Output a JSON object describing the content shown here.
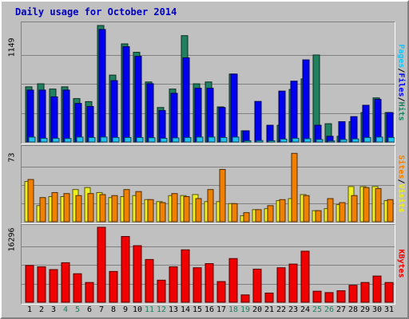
{
  "title": "Daily usage for October 2014",
  "colors": {
    "hits": "#20805f",
    "files": "#0000f0",
    "pages": "#20c0f0",
    "visits": "#f0f020",
    "sites": "#f08000",
    "kbytes": "#f00000",
    "weekday_label": "#000000",
    "weekend_label": "#208060"
  },
  "chart_data": {
    "type": "bar",
    "categories": [
      "1",
      "2",
      "3",
      "4",
      "5",
      "6",
      "7",
      "8",
      "9",
      "10",
      "11",
      "12",
      "13",
      "14",
      "15",
      "16",
      "17",
      "18",
      "19",
      "20",
      "21",
      "22",
      "23",
      "24",
      "25",
      "26",
      "27",
      "28",
      "29",
      "30",
      "31"
    ],
    "weekend_days": [
      "4",
      "5",
      "11",
      "12",
      "18",
      "19",
      "25",
      "26"
    ],
    "panels": [
      {
        "id": "usage",
        "max_label": "1149",
        "ylim": [
          0,
          1149
        ],
        "legend": [
          {
            "text": "Pages",
            "color": "#20c0f0"
          },
          {
            "text": "/",
            "color": "#000000"
          },
          {
            "text": "Files",
            "color": "#0000f0"
          },
          {
            "text": "/",
            "color": "#000000"
          },
          {
            "text": "Hits",
            "color": "#20805f"
          }
        ],
        "series": [
          {
            "name": "Hits",
            "values": [
              544,
              574,
              522,
              544,
              428,
              398,
              1149,
              660,
              968,
              885,
              592,
              340,
              522,
              1049,
              574,
              592,
              346,
              670,
              110,
              0,
              0,
              165,
              518,
              622,
              858,
              180,
              56,
              200,
              290,
              435,
              290
            ]
          },
          {
            "name": "Files",
            "values": [
              512,
              512,
              445,
              512,
              380,
              350,
              1110,
              605,
              940,
              845,
              575,
              310,
              480,
              830,
              530,
              530,
              340,
              670,
              110,
              400,
              165,
              502,
              600,
              810,
              165,
              56,
              200,
              250,
              362,
              420,
              290
            ]
          },
          {
            "name": "Pages",
            "values": [
              48,
              36,
              36,
              34,
              48,
              44,
              48,
              44,
              44,
              44,
              42,
              36,
              40,
              44,
              48,
              48,
              44,
              48,
              12,
              14,
              12,
              28,
              36,
              32,
              24,
              10,
              24,
              30,
              44,
              48,
              44
            ]
          }
        ]
      },
      {
        "id": "visits",
        "max_label": "73",
        "ylim": [
          0,
          73
        ],
        "legend": [
          {
            "text": "Sites",
            "color": "#f08000"
          },
          {
            "text": "/",
            "color": "#000000"
          },
          {
            "text": "Visits",
            "color": "#f0f020"
          }
        ],
        "series": [
          {
            "name": "Visits",
            "values": [
              40,
              16,
              25,
              25,
              32,
              34,
              29,
              24,
              25,
              26,
              22,
              20,
              26,
              26,
              27,
              20,
              20,
              18,
              6,
              12,
              13,
              21,
              23,
              27,
              11,
              13,
              17,
              35,
              35,
              35,
              21
            ]
          },
          {
            "name": "Sites",
            "values": [
              42,
              24,
              29,
              28,
              26,
              28,
              27,
              26,
              32,
              30,
              22,
              19,
              28,
              25,
              23,
              32,
              52,
              18,
              9,
              12,
              16,
              22,
              68,
              26,
              11,
              23,
              19,
              26,
              34,
              33,
              22
            ]
          }
        ]
      },
      {
        "id": "kbytes",
        "max_label": "16296",
        "ylim": [
          0,
          16296
        ],
        "legend": [
          {
            "text": "KBytes",
            "color": "#f00000"
          }
        ],
        "series": [
          {
            "name": "KBytes",
            "values": [
              8000,
              7700,
              7100,
              8600,
              6200,
              4300,
              16296,
              6700,
              14300,
              12300,
              9300,
              4800,
              7700,
              11400,
              7500,
              8400,
              4500,
              9500,
              1600,
              7200,
              2000,
              7500,
              8300,
              11100,
              2400,
              2100,
              2500,
              3700,
              4300,
              5700,
              4300
            ]
          }
        ]
      }
    ]
  }
}
